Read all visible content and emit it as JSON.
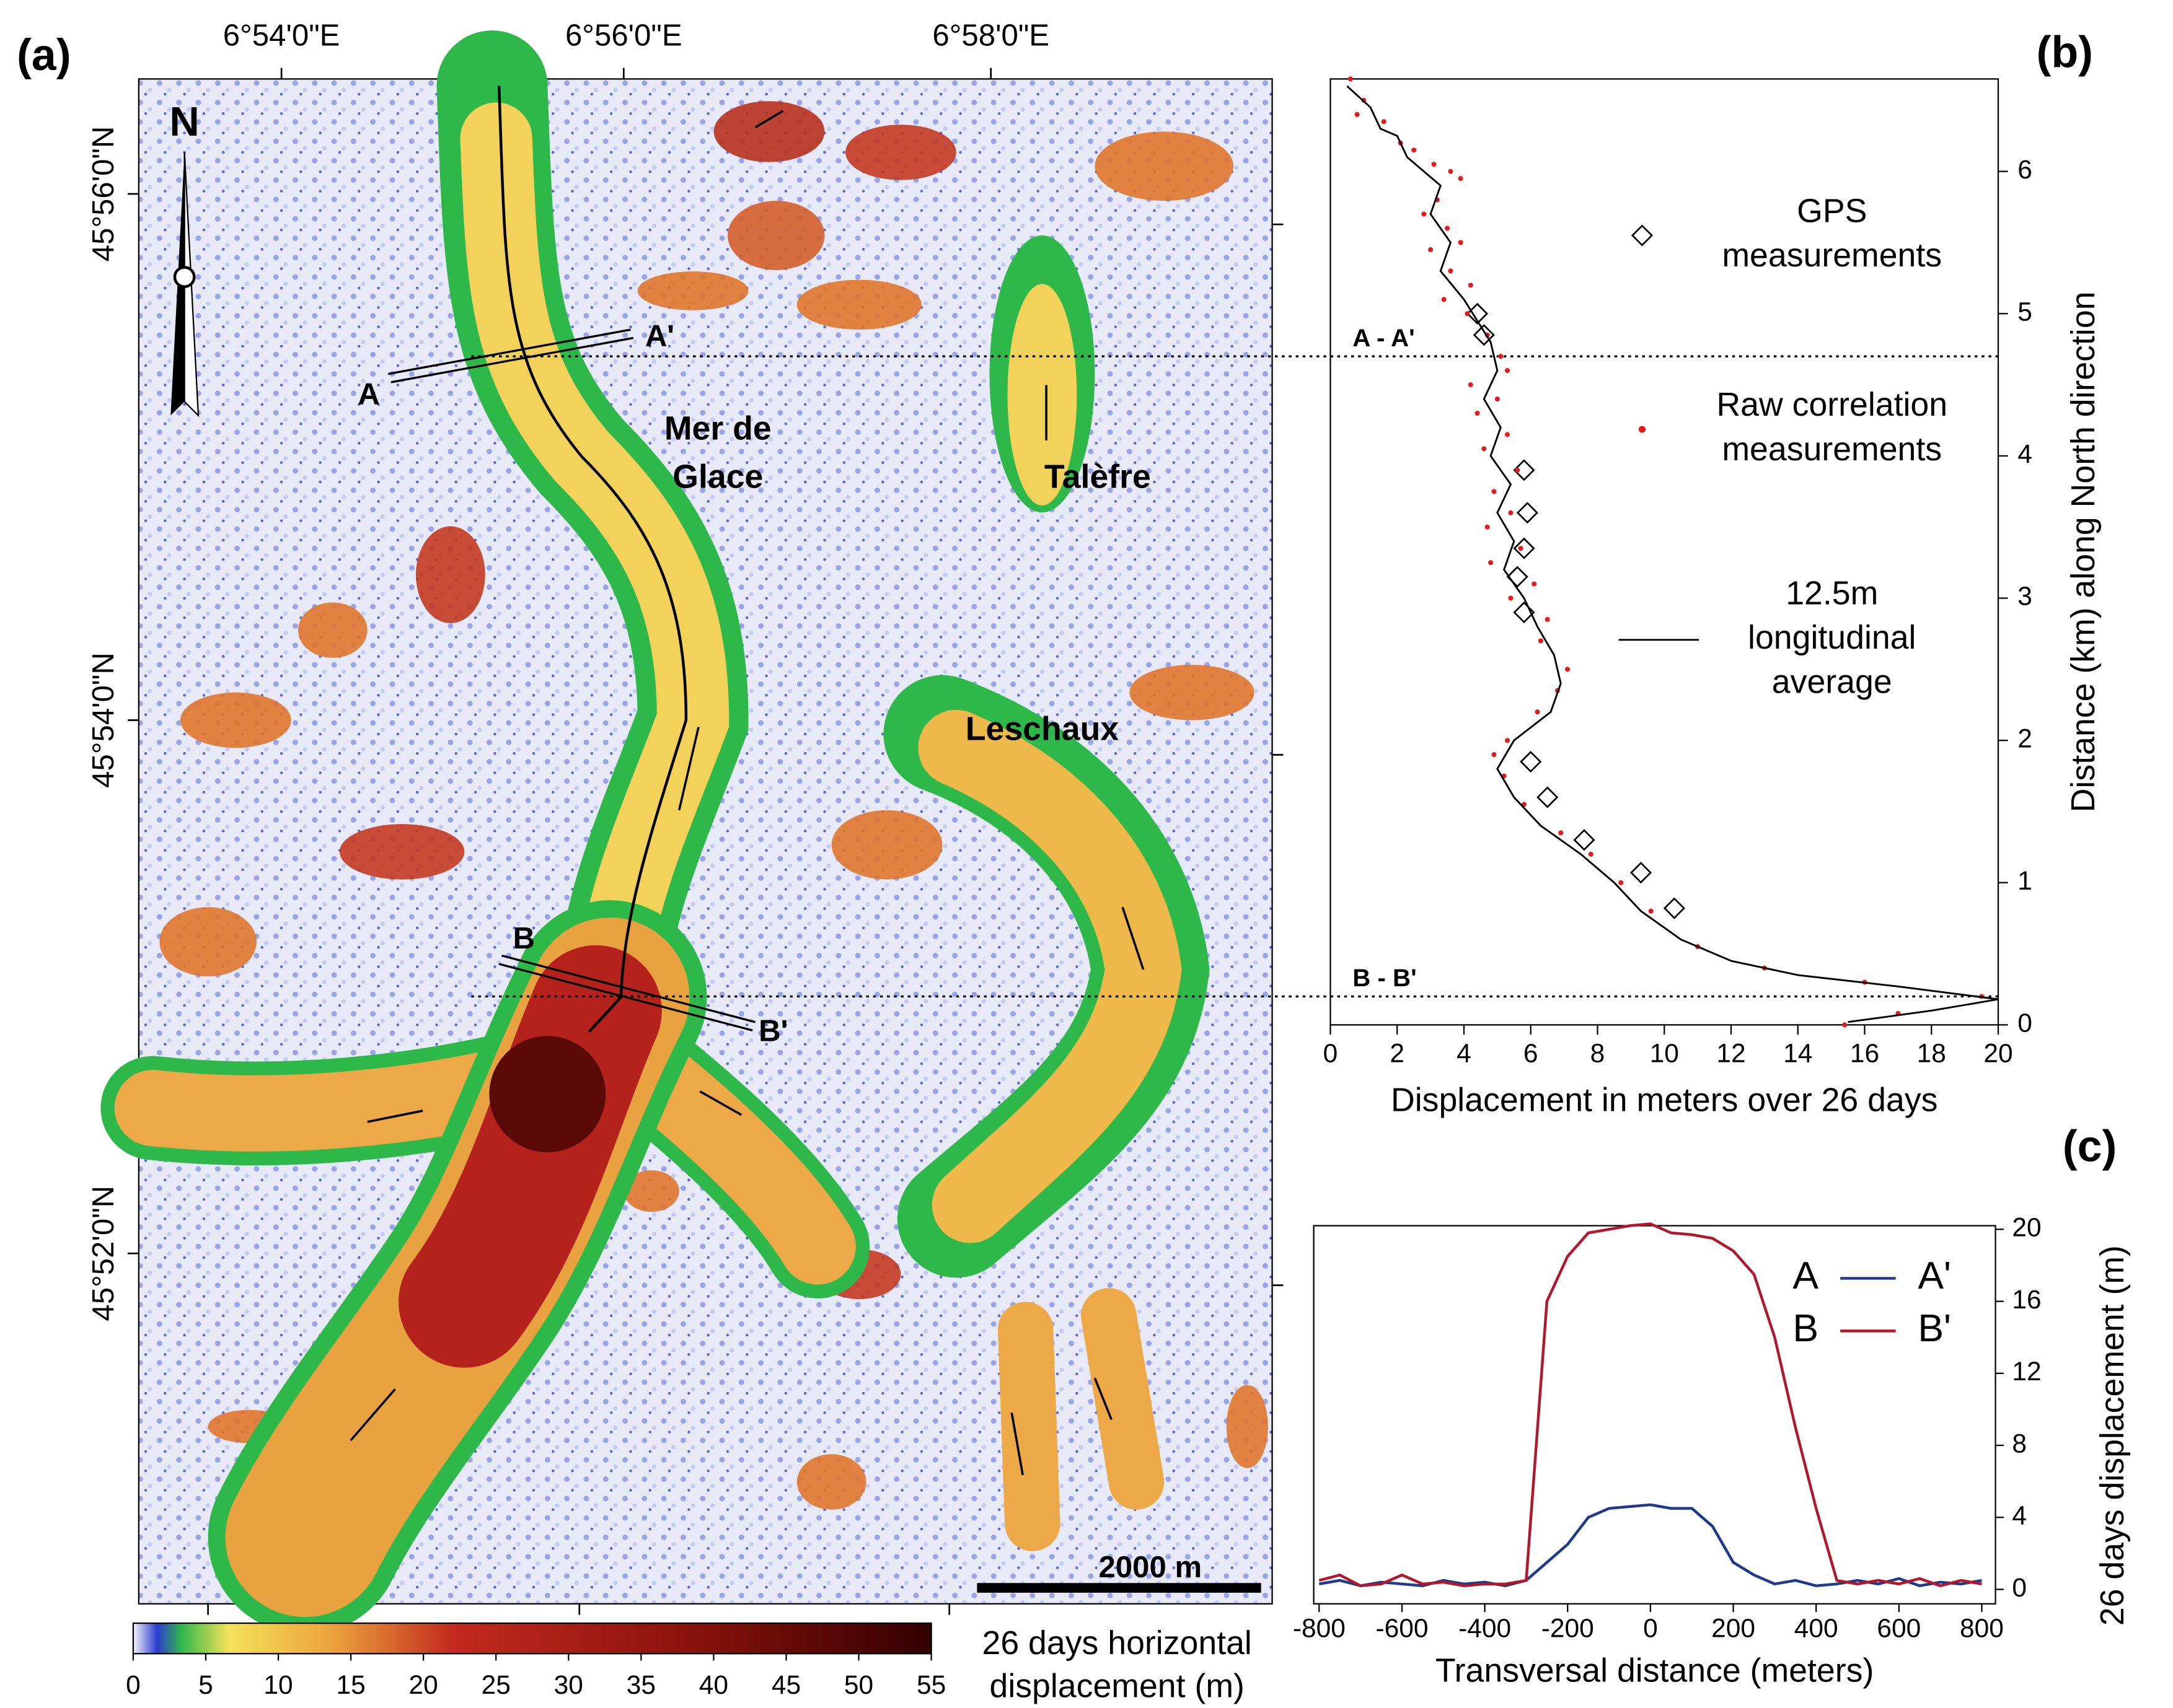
{
  "chart_data": [
    {
      "type": "map",
      "panel_label": "(a)",
      "lon_ticks": [
        "6°54'0\"E",
        "6°56'0\"E",
        "6°58'0\"E"
      ],
      "lat_ticks": [
        "45°56'0\"N",
        "45°54'0\"N",
        "45°52'0\"N"
      ],
      "annotations": [
        "Mer de",
        "Glace",
        "Talèfre",
        "Leschaux",
        "A",
        "A'",
        "B",
        "B'",
        "N",
        "2000 m"
      ],
      "colorbar": {
        "label": [
          "26 days horizontal",
          "displacement (m)"
        ],
        "lim": [
          0,
          55
        ],
        "ticks": [
          0,
          5,
          10,
          15,
          20,
          25,
          30,
          35,
          40,
          45,
          50,
          55
        ]
      }
    },
    {
      "type": "profile",
      "panel_label": "(b)",
      "xlabel": "Displacement in meters over 26 days",
      "ylabel": "Distance (km) along North direction",
      "xlim": [
        0,
        20
      ],
      "xticks": [
        0,
        2,
        4,
        6,
        8,
        10,
        12,
        14,
        16,
        18,
        20
      ],
      "ylim": [
        0,
        6.65
      ],
      "yticks": [
        0,
        1,
        2,
        3,
        4,
        5,
        6
      ],
      "reference_lines": [
        {
          "label": "A - A'",
          "value": 4.7
        },
        {
          "label": "B - B'",
          "value": 0.2
        }
      ],
      "series": [
        {
          "name": "GPS measurements",
          "marker": "diamond",
          "color": "#000000",
          "x": [
            4.4,
            4.6,
            5.8,
            5.9,
            5.8,
            5.6,
            5.8,
            6.0,
            6.5,
            7.6,
            9.3,
            10.3
          ],
          "values": [
            5.0,
            4.85,
            3.9,
            3.6,
            3.35,
            3.15,
            2.9,
            1.85,
            1.6,
            1.3,
            1.07,
            0.82
          ]
        },
        {
          "name": "Raw correlation measurements",
          "marker": "dot",
          "color": "#e41a1c",
          "x": [
            0.6,
            1.0,
            0.8,
            1.6,
            2.1,
            2.5,
            3.1,
            3.6,
            3.9,
            3.2,
            2.8,
            3.5,
            3.9,
            3.0,
            3.6,
            4.2,
            3.4,
            4.1,
            4.7,
            5.1,
            5.3,
            4.2,
            5.0,
            4.4,
            5.3,
            4.6,
            5.6,
            4.9,
            5.4,
            4.7,
            5.7,
            4.8,
            6.1,
            5.4,
            6.5,
            6.3,
            7.1,
            6.8,
            6.2,
            5.3,
            4.9,
            5.2,
            5.8,
            6.9,
            7.8,
            8.7,
            9.6,
            11,
            13,
            16,
            19.5,
            17,
            15.4
          ],
          "values": [
            6.65,
            6.5,
            6.4,
            6.35,
            6.2,
            6.15,
            6.05,
            6.0,
            5.95,
            5.8,
            5.7,
            5.6,
            5.5,
            5.45,
            5.3,
            5.2,
            5.1,
            5.0,
            4.85,
            4.7,
            4.6,
            4.5,
            4.4,
            4.3,
            4.15,
            4.05,
            3.9,
            3.75,
            3.6,
            3.5,
            3.35,
            3.25,
            3.1,
            3.0,
            2.85,
            2.7,
            2.5,
            2.35,
            2.2,
            2.0,
            1.9,
            1.75,
            1.55,
            1.35,
            1.2,
            1.0,
            0.8,
            0.55,
            0.4,
            0.3,
            0.2,
            0.08,
            0.0
          ]
        },
        {
          "name": "12.5m longitudinal average",
          "marker": "line",
          "color": "#000000",
          "x": [
            0.5,
            1.2,
            1.5,
            2.0,
            2.3,
            2.8,
            3.3,
            3.0,
            3.6,
            3.3,
            4.0,
            4.4,
            4.8,
            5.0,
            4.6,
            5.1,
            4.8,
            5.4,
            5.0,
            5.5,
            5.2,
            5.8,
            6.2,
            6.7,
            6.9,
            6.6,
            5.5,
            5.0,
            5.5,
            6.3,
            7.5,
            8.5,
            9.3,
            10.5,
            12,
            14,
            17,
            20,
            18,
            15.5
          ],
          "values": [
            6.6,
            6.45,
            6.3,
            6.25,
            6.1,
            6.0,
            5.9,
            5.7,
            5.5,
            5.3,
            5.1,
            4.95,
            4.8,
            4.6,
            4.4,
            4.2,
            4.0,
            3.8,
            3.6,
            3.4,
            3.2,
            3.0,
            2.8,
            2.6,
            2.4,
            2.2,
            2.0,
            1.8,
            1.6,
            1.4,
            1.2,
            1.0,
            0.8,
            0.6,
            0.45,
            0.35,
            0.27,
            0.18,
            0.1,
            0.02
          ]
        }
      ]
    },
    {
      "type": "line",
      "panel_label": "(c)",
      "xlabel": "Transversal distance (meters)",
      "ylabel": "26 days displacement (m)",
      "x": [
        -800,
        -750,
        -700,
        -650,
        -600,
        -550,
        -500,
        -450,
        -400,
        -350,
        -300,
        -250,
        -200,
        -150,
        -100,
        -50,
        0,
        50,
        100,
        150,
        200,
        250,
        300,
        350,
        400,
        450,
        500,
        550,
        600,
        650,
        700,
        750,
        800
      ],
      "xlim": [
        -813,
        833
      ],
      "xticks": [
        -800,
        -600,
        -400,
        -200,
        0,
        200,
        400,
        600,
        800
      ],
      "ylim": [
        -0.8,
        20.2
      ],
      "yticks": [
        0,
        4,
        8,
        12,
        16,
        20
      ],
      "series": [
        {
          "name": "A",
          "end_label": "A'",
          "color": "#1f3a8a",
          "values": [
            0.3,
            0.5,
            0.2,
            0.4,
            0.3,
            0.2,
            0.5,
            0.3,
            0.4,
            0.2,
            0.5,
            1.5,
            2.5,
            4,
            4.5,
            4.6,
            4.7,
            4.5,
            4.5,
            3.5,
            1.5,
            0.8,
            0.3,
            0.5,
            0.2,
            0.3,
            0.5,
            0.3,
            0.6,
            0.2,
            0.4,
            0.3,
            0.5
          ]
        },
        {
          "name": "B",
          "end_label": "B'",
          "color": "#b2182b",
          "values": [
            0.5,
            0.8,
            0.2,
            0.3,
            0.8,
            0.3,
            0.4,
            0.2,
            0.3,
            0.3,
            0.5,
            16,
            18.5,
            19.8,
            20,
            20.2,
            20.3,
            19.8,
            19.7,
            19.5,
            18.8,
            17.5,
            14,
            9,
            4.5,
            0.5,
            0.3,
            0.5,
            0.3,
            0.6,
            0.2,
            0.5,
            0.3
          ]
        }
      ]
    }
  ]
}
